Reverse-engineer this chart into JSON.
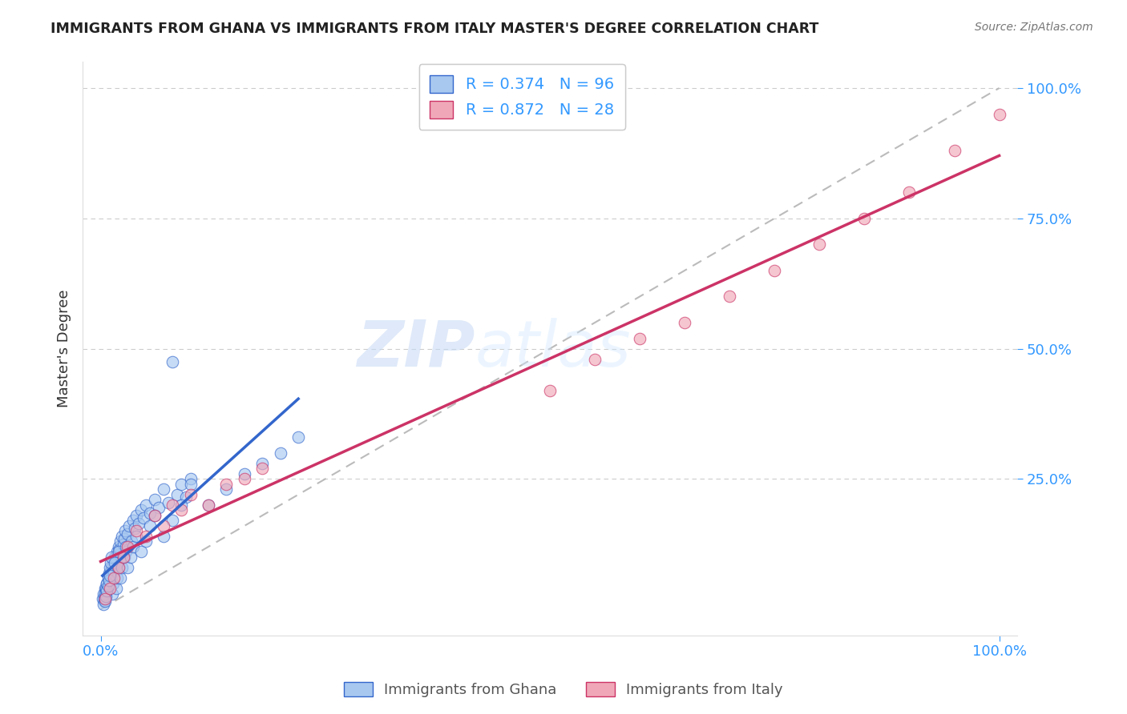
{
  "title": "IMMIGRANTS FROM GHANA VS IMMIGRANTS FROM ITALY MASTER'S DEGREE CORRELATION CHART",
  "source": "Source: ZipAtlas.com",
  "ylabel_label": "Master's Degree",
  "legend_labels": [
    "Immigrants from Ghana",
    "Immigrants from Italy"
  ],
  "r_ghana": 0.374,
  "n_ghana": 96,
  "r_italy": 0.872,
  "n_italy": 28,
  "color_ghana": "#A8C8F0",
  "color_italy": "#F0A8B8",
  "color_ghana_line": "#3366CC",
  "color_italy_line": "#CC3366",
  "color_ref_line": "#BBBBBB",
  "background_color": "#FFFFFF",
  "watermark_zip": "ZIP",
  "watermark_atlas": "atlas",
  "ghana_x": [
    0.2,
    0.3,
    0.4,
    0.5,
    0.5,
    0.6,
    0.7,
    0.8,
    0.9,
    1.0,
    1.0,
    1.1,
    1.2,
    1.3,
    1.4,
    1.5,
    1.6,
    1.7,
    1.8,
    1.9,
    2.0,
    2.0,
    2.1,
    2.2,
    2.3,
    2.4,
    2.5,
    2.6,
    2.7,
    2.8,
    3.0,
    3.2,
    3.4,
    3.6,
    3.8,
    4.0,
    4.2,
    4.5,
    4.8,
    5.0,
    5.5,
    6.0,
    6.5,
    7.0,
    7.5,
    8.0,
    8.5,
    9.0,
    9.5,
    10.0,
    0.3,
    0.4,
    0.5,
    0.6,
    0.7,
    0.8,
    0.9,
    1.0,
    1.1,
    1.2,
    1.3,
    1.4,
    1.5,
    1.6,
    1.7,
    1.8,
    1.9,
    2.0,
    2.2,
    2.4,
    2.6,
    2.8,
    3.0,
    3.3,
    3.6,
    4.0,
    4.5,
    5.0,
    5.5,
    6.0,
    7.0,
    8.0,
    9.0,
    10.0,
    12.0,
    14.0,
    16.0,
    18.0,
    20.0,
    22.0,
    0.5,
    0.6,
    0.7,
    0.8,
    0.9,
    1.0
  ],
  "ghana_y": [
    2.0,
    3.0,
    1.5,
    4.0,
    2.5,
    3.5,
    5.0,
    4.5,
    6.0,
    5.5,
    7.0,
    6.5,
    8.0,
    7.5,
    9.0,
    8.5,
    10.0,
    9.5,
    11.0,
    10.5,
    12.0,
    8.0,
    11.5,
    13.0,
    10.0,
    14.0,
    12.5,
    13.5,
    15.0,
    11.0,
    14.5,
    16.0,
    13.0,
    17.0,
    15.5,
    18.0,
    16.5,
    19.0,
    17.5,
    20.0,
    18.5,
    21.0,
    19.5,
    23.0,
    20.5,
    47.5,
    22.0,
    24.0,
    21.5,
    25.0,
    1.0,
    2.0,
    3.0,
    4.0,
    5.0,
    6.0,
    7.0,
    8.0,
    9.0,
    10.0,
    3.0,
    5.0,
    7.0,
    9.0,
    4.0,
    6.0,
    8.0,
    11.0,
    6.0,
    8.0,
    10.0,
    12.0,
    8.0,
    10.0,
    12.0,
    14.0,
    11.0,
    13.0,
    16.0,
    18.0,
    14.0,
    17.0,
    20.0,
    24.0,
    20.0,
    23.0,
    26.0,
    28.0,
    30.0,
    33.0,
    1.5,
    2.5,
    3.5,
    4.5,
    5.5,
    6.5
  ],
  "italy_x": [
    0.5,
    1.0,
    1.5,
    2.0,
    2.5,
    3.0,
    4.0,
    5.0,
    6.0,
    7.0,
    8.0,
    9.0,
    10.0,
    12.0,
    14.0,
    16.0,
    18.0,
    50.0,
    55.0,
    60.0,
    65.0,
    70.0,
    75.0,
    80.0,
    85.0,
    90.0,
    95.0,
    100.0
  ],
  "italy_y": [
    2.0,
    4.0,
    6.0,
    8.0,
    10.0,
    12.0,
    15.0,
    14.0,
    18.0,
    16.0,
    20.0,
    19.0,
    22.0,
    20.0,
    24.0,
    25.0,
    27.0,
    42.0,
    48.0,
    52.0,
    55.0,
    60.0,
    65.0,
    70.0,
    75.0,
    80.0,
    88.0,
    95.0
  ]
}
